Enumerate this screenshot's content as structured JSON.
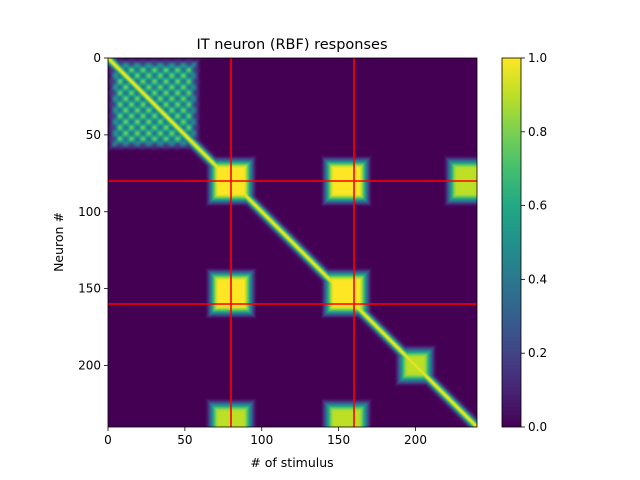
{
  "chart_data": {
    "type": "heatmap",
    "title": "IT neuron (RBF) responses",
    "xlabel": "# of stimulus",
    "ylabel": "Neuron #",
    "x_range": [
      0,
      240
    ],
    "y_range": [
      0,
      240
    ],
    "y_inverted": true,
    "x_ticks": [
      0,
      50,
      100,
      150,
      200
    ],
    "y_ticks": [
      0,
      50,
      100,
      150,
      200
    ],
    "colormap": "viridis",
    "colorbar": {
      "range": [
        0,
        1
      ],
      "ticks": [
        "0.0",
        "0.2",
        "0.4",
        "0.6",
        "0.8",
        "1.0"
      ]
    },
    "reference_lines": {
      "color": "#ff0000",
      "x": [
        80,
        160
      ],
      "y": [
        80,
        160
      ]
    },
    "structure": {
      "diagonal_response": 1.0,
      "clusters": [
        {
          "center_x": 30,
          "center_y": 30,
          "half_width": 27,
          "level": 0.8,
          "texture": "grid",
          "grid_spacing": 7.5
        },
        {
          "center_x": 80,
          "center_y": 80,
          "half_width": 13,
          "level": 1.0
        },
        {
          "center_x": 155,
          "center_y": 80,
          "half_width": 13,
          "level": 1.0
        },
        {
          "center_x": 235,
          "center_y": 80,
          "half_width": 13,
          "level": 0.9
        },
        {
          "center_x": 80,
          "center_y": 153,
          "half_width": 13,
          "level": 1.0
        },
        {
          "center_x": 155,
          "center_y": 153,
          "half_width": 13,
          "level": 1.0
        },
        {
          "center_x": 200,
          "center_y": 200,
          "half_width": 10,
          "level": 0.9
        },
        {
          "center_x": 80,
          "center_y": 238,
          "half_width": 13,
          "level": 0.9
        },
        {
          "center_x": 155,
          "center_y": 238,
          "half_width": 13,
          "level": 0.9
        }
      ]
    }
  }
}
